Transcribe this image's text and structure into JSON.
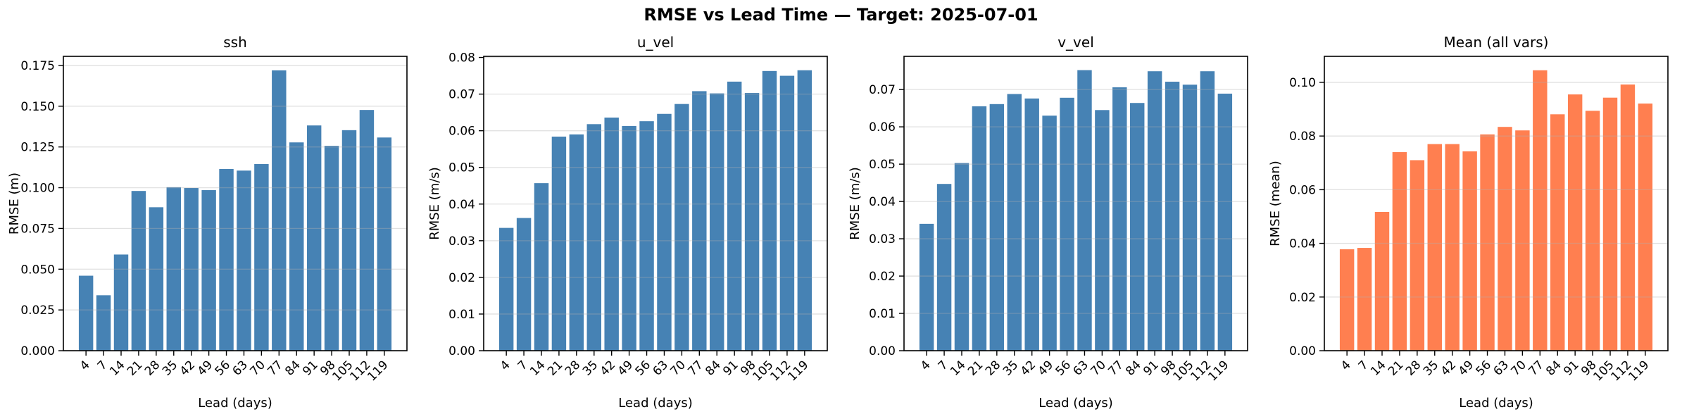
{
  "figure": {
    "suptitle": "RMSE vs Lead Time — Target: 2025-07-01"
  },
  "chart_data": [
    {
      "type": "bar",
      "title": "ssh",
      "xlabel": "Lead (days)",
      "ylabel": "RMSE (m)",
      "bar_color": "#4682B4",
      "grid": true,
      "legend": "none",
      "categories": [
        "4",
        "7",
        "14",
        "21",
        "28",
        "35",
        "42",
        "49",
        "56",
        "63",
        "70",
        "77",
        "84",
        "91",
        "98",
        "105",
        "112",
        "119"
      ],
      "values": [
        0.046,
        0.034,
        0.059,
        0.098,
        0.088,
        0.1003,
        0.0998,
        0.0985,
        0.1115,
        0.1105,
        0.1145,
        0.172,
        0.1278,
        0.1382,
        0.1257,
        0.1353,
        0.1477,
        0.1308
      ],
      "ylim": [
        0,
        0.1806
      ],
      "ytick_values": [
        0.0,
        0.025,
        0.05,
        0.075,
        0.1,
        0.125,
        0.15,
        0.175
      ],
      "ytick_labels": [
        "0.000",
        "0.025",
        "0.050",
        "0.075",
        "0.100",
        "0.125",
        "0.150",
        "0.175"
      ]
    },
    {
      "type": "bar",
      "title": "u_vel",
      "xlabel": "Lead (days)",
      "ylabel": "RMSE (m/s)",
      "bar_color": "#4682B4",
      "grid": true,
      "legend": "none",
      "categories": [
        "4",
        "7",
        "14",
        "21",
        "28",
        "35",
        "42",
        "49",
        "56",
        "63",
        "70",
        "77",
        "84",
        "91",
        "98",
        "105",
        "112",
        "119"
      ],
      "values": [
        0.0335,
        0.0362,
        0.0457,
        0.0584,
        0.059,
        0.0618,
        0.0636,
        0.0613,
        0.0626,
        0.0646,
        0.0673,
        0.0708,
        0.0702,
        0.0734,
        0.0703,
        0.0763,
        0.075,
        0.0765
      ],
      "ylim": [
        0,
        0.0803
      ],
      "ytick_values": [
        0.0,
        0.01,
        0.02,
        0.03,
        0.04,
        0.05,
        0.06,
        0.07,
        0.08
      ],
      "ytick_labels": [
        "0.00",
        "0.01",
        "0.02",
        "0.03",
        "0.04",
        "0.05",
        "0.06",
        "0.07",
        "0.08"
      ]
    },
    {
      "type": "bar",
      "title": "v_vel",
      "xlabel": "Lead (days)",
      "ylabel": "RMSE (m/s)",
      "bar_color": "#4682B4",
      "grid": true,
      "legend": "none",
      "categories": [
        "4",
        "7",
        "14",
        "21",
        "28",
        "35",
        "42",
        "49",
        "56",
        "63",
        "70",
        "77",
        "84",
        "91",
        "98",
        "105",
        "112",
        "119"
      ],
      "values": [
        0.034,
        0.0447,
        0.0503,
        0.0655,
        0.0661,
        0.0688,
        0.0676,
        0.063,
        0.0678,
        0.0752,
        0.0645,
        0.0706,
        0.0664,
        0.0749,
        0.0721,
        0.0713,
        0.0749,
        0.0689
      ],
      "ylim": [
        0,
        0.0789
      ],
      "ytick_values": [
        0.0,
        0.01,
        0.02,
        0.03,
        0.04,
        0.05,
        0.06,
        0.07
      ],
      "ytick_labels": [
        "0.00",
        "0.01",
        "0.02",
        "0.03",
        "0.04",
        "0.05",
        "0.06",
        "0.07"
      ]
    },
    {
      "type": "bar",
      "title": "Mean (all vars)",
      "xlabel": "Lead (days)",
      "ylabel": "RMSE (mean)",
      "bar_color": "#FF7F50",
      "grid": true,
      "legend": "none",
      "categories": [
        "4",
        "7",
        "14",
        "21",
        "28",
        "35",
        "42",
        "49",
        "56",
        "63",
        "70",
        "77",
        "84",
        "91",
        "98",
        "105",
        "112",
        "119"
      ],
      "values": [
        0.0378,
        0.0383,
        0.0517,
        0.074,
        0.071,
        0.077,
        0.077,
        0.0743,
        0.0806,
        0.0834,
        0.0821,
        0.1045,
        0.0881,
        0.0955,
        0.0894,
        0.0943,
        0.0992,
        0.0921
      ],
      "ylim": [
        0,
        0.1097
      ],
      "ytick_values": [
        0.0,
        0.02,
        0.04,
        0.06,
        0.08,
        0.1
      ],
      "ytick_labels": [
        "0.00",
        "0.02",
        "0.04",
        "0.06",
        "0.08",
        "0.10"
      ]
    }
  ]
}
